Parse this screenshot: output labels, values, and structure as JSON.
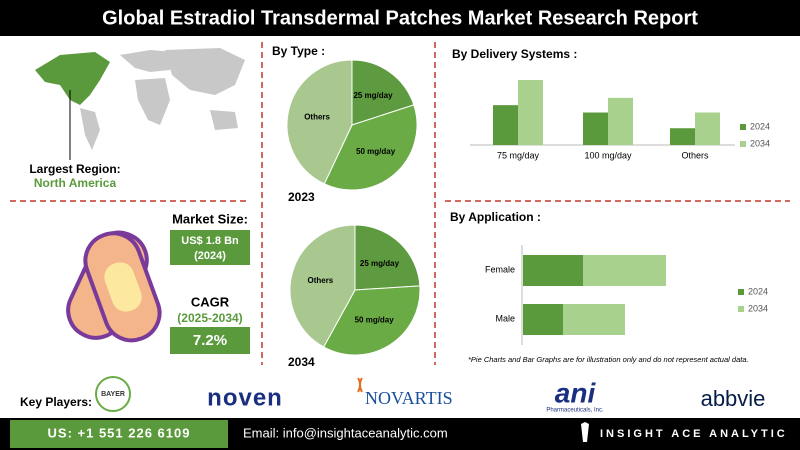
{
  "header": {
    "title": "Global Estradiol Transdermal Patches Market Research Report"
  },
  "region": {
    "label": "Largest Region:",
    "value": "North America"
  },
  "market_size": {
    "label": "Market Size:",
    "value": "US$ 1.8 Bn",
    "year": "(2024)"
  },
  "cagr": {
    "label": "CAGR",
    "period": "(2025-2034)",
    "value": "7.2%"
  },
  "by_type": {
    "title": "By Type :",
    "categories": [
      "25 mg/day",
      "50 mg/day",
      "Others"
    ],
    "colors": [
      "#5e9a3f",
      "#6aab46",
      "#a9c88f"
    ],
    "charts": [
      {
        "year": "2023",
        "values": [
          20,
          37,
          43
        ]
      },
      {
        "year": "2034",
        "values": [
          24,
          34,
          42
        ]
      }
    ]
  },
  "by_delivery": {
    "title": "By Delivery Systems :",
    "categories": [
      "75 mg/day",
      "100 mg/day",
      "Others"
    ],
    "series": [
      {
        "name": "2024",
        "color": "#5b9a3c",
        "values": [
          38,
          31,
          16
        ]
      },
      {
        "name": "2034",
        "color": "#a9d18e",
        "values": [
          62,
          45,
          31
        ]
      }
    ]
  },
  "by_application": {
    "title": "By Application :",
    "categories": [
      "Female",
      "Male"
    ],
    "series": [
      {
        "name": "2024",
        "color": "#5b9a3c",
        "values": [
          60,
          40
        ]
      },
      {
        "name": "2034",
        "color": "#a9d18e",
        "values": [
          83,
          62
        ]
      }
    ]
  },
  "note": "*Pie Charts and Bar Graphs are for illustration only and do not represent actual data.",
  "key_players": {
    "label": "Key Players:",
    "logos": [
      "BAYER",
      "noven",
      "NOVARTIS",
      "ani",
      "Pharmaceuticals, Inc.",
      "abbvie"
    ]
  },
  "footer": {
    "phone": "US: +1 551 226 6109",
    "email": "Email: info@insightaceanalytic.com",
    "brand": "INSIGHT ACE ANALYTIC"
  }
}
